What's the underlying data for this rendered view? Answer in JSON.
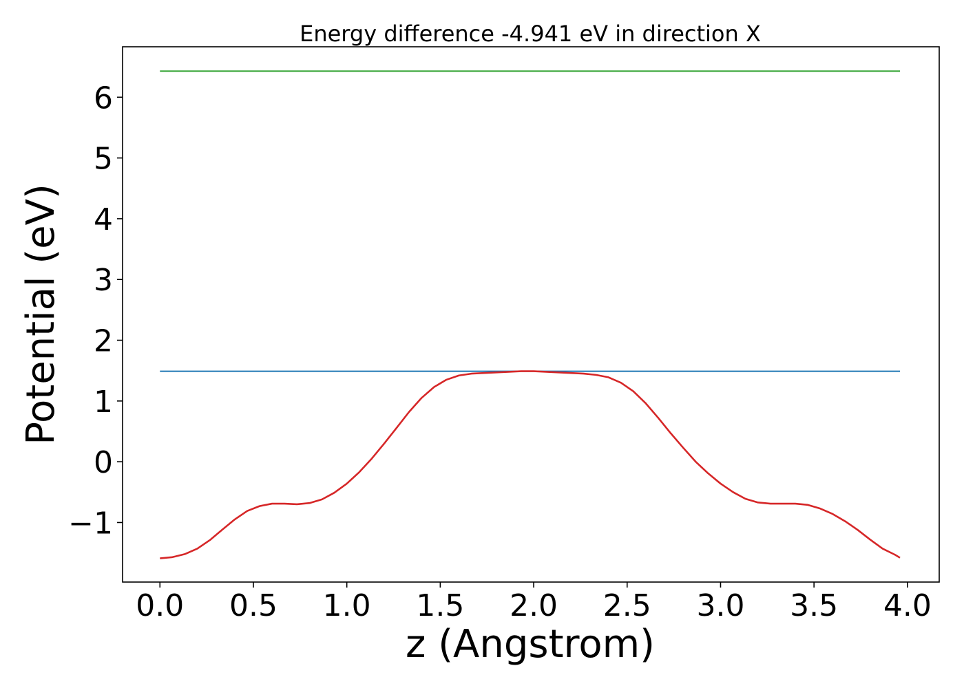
{
  "chart_data": {
    "type": "line",
    "title": "Energy difference -4.941 eV in direction X",
    "xlabel": "z (Angstrom)",
    "ylabel": "Potential (eV)",
    "xlim": [
      -0.2,
      4.17
    ],
    "ylim": [
      -1.98,
      6.83
    ],
    "xticks": [
      0.0,
      0.5,
      1.0,
      1.5,
      2.0,
      2.5,
      3.0,
      3.5,
      4.0
    ],
    "xtick_labels": [
      "0.0",
      "0.5",
      "1.0",
      "1.5",
      "2.0",
      "2.5",
      "3.0",
      "3.5",
      "4.0"
    ],
    "yticks": [
      -1,
      0,
      1,
      2,
      3,
      4,
      5,
      6
    ],
    "ytick_labels": [
      "−1",
      "0",
      "1",
      "2",
      "3",
      "4",
      "5",
      "6"
    ],
    "grid": false,
    "legend": "none",
    "series": [
      {
        "color": "#2ca02c",
        "x": [
          0.0,
          3.96
        ],
        "y": [
          6.43,
          6.43
        ]
      },
      {
        "color": "#1f77b4",
        "x": [
          0.0,
          3.96
        ],
        "y": [
          1.49,
          1.49
        ]
      },
      {
        "color": "#d62728",
        "x": [
          0.0,
          0.067,
          0.133,
          0.2,
          0.267,
          0.333,
          0.4,
          0.467,
          0.533,
          0.6,
          0.667,
          0.733,
          0.8,
          0.867,
          0.933,
          1.0,
          1.067,
          1.133,
          1.2,
          1.267,
          1.333,
          1.4,
          1.467,
          1.533,
          1.6,
          1.667,
          1.733,
          1.8,
          1.867,
          1.933,
          2.0,
          2.067,
          2.133,
          2.2,
          2.267,
          2.333,
          2.4,
          2.467,
          2.533,
          2.6,
          2.667,
          2.733,
          2.8,
          2.867,
          2.933,
          3.0,
          3.067,
          3.133,
          3.2,
          3.267,
          3.333,
          3.4,
          3.467,
          3.533,
          3.6,
          3.667,
          3.733,
          3.8,
          3.867,
          3.933,
          3.96
        ],
        "y": [
          -1.59,
          -1.57,
          -1.52,
          -1.43,
          -1.29,
          -1.12,
          -0.95,
          -0.81,
          -0.73,
          -0.69,
          -0.69,
          -0.7,
          -0.68,
          -0.62,
          -0.51,
          -0.36,
          -0.17,
          0.05,
          0.3,
          0.56,
          0.82,
          1.05,
          1.23,
          1.35,
          1.42,
          1.45,
          1.46,
          1.47,
          1.48,
          1.49,
          1.49,
          1.48,
          1.47,
          1.46,
          1.45,
          1.43,
          1.39,
          1.3,
          1.16,
          0.96,
          0.72,
          0.47,
          0.23,
          0.0,
          -0.19,
          -0.36,
          -0.5,
          -0.61,
          -0.67,
          -0.69,
          -0.69,
          -0.69,
          -0.71,
          -0.77,
          -0.86,
          -0.98,
          -1.12,
          -1.28,
          -1.43,
          -1.53,
          -1.58
        ]
      }
    ]
  }
}
